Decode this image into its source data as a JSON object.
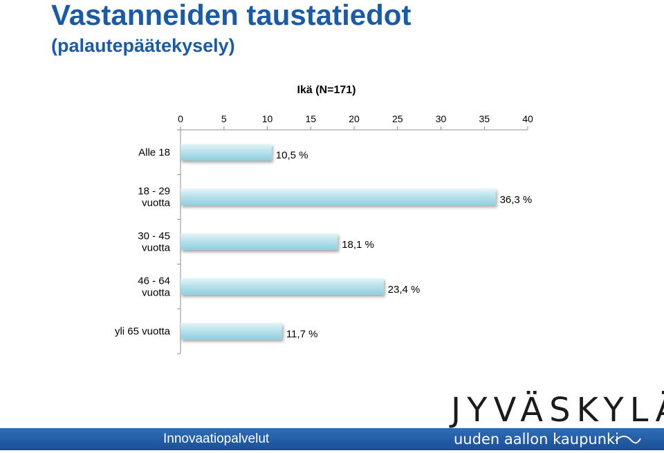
{
  "header": {
    "title": "Vastanneiden taustatiedot",
    "subtitle": "(palautepäätekysely)"
  },
  "chart_data": {
    "type": "bar",
    "orientation": "horizontal",
    "title": "Ikä (N=171)",
    "categories": [
      "Alle 18",
      "18 - 29\nvuotta",
      "30 - 45\nvuotta",
      "46 - 64\nvuotta",
      "yli 65 vuotta"
    ],
    "values": [
      10.5,
      36.3,
      18.1,
      23.4,
      11.7
    ],
    "data_labels": [
      "10,5 %",
      "36,3 %",
      "18,1 %",
      "23,4 %",
      "11,7 %"
    ],
    "xticks": [
      "0",
      "5",
      "10",
      "15",
      "20",
      "25",
      "30",
      "35",
      "40"
    ],
    "xlim": [
      0,
      40
    ],
    "axis_position": "top",
    "grid": false,
    "legend": "none",
    "bar_color": "#a9dbe6"
  },
  "footer": {
    "department": "Innovaatiopalvelut",
    "brand": "JYVÄSKYLÄ",
    "tagline": "uuden aallon kaupunki",
    "bar_color": "#1f5aa3"
  }
}
